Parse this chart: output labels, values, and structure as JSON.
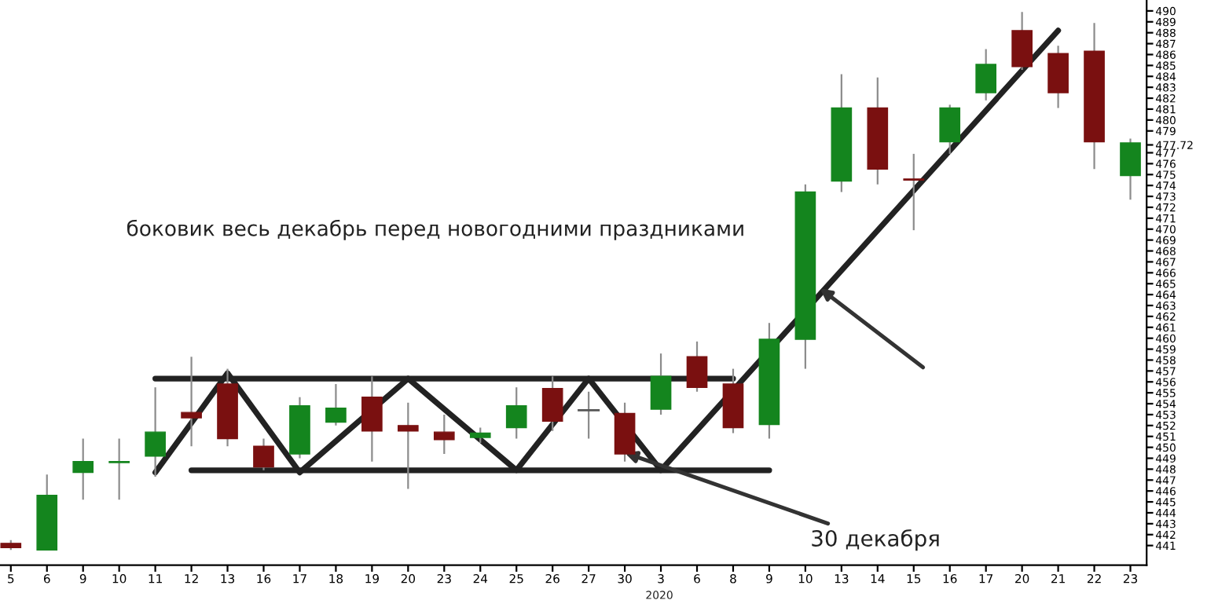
{
  "chart_data": {
    "type": "candlestick",
    "categories": [
      "5",
      "6",
      "9",
      "10",
      "11",
      "12",
      "13",
      "16",
      "17",
      "18",
      "19",
      "20",
      "23",
      "24",
      "25",
      "26",
      "27",
      "30",
      "3",
      "6",
      "8",
      "9",
      "10",
      "13",
      "14",
      "15",
      "16",
      "17",
      "20",
      "21",
      "22",
      "23"
    ],
    "ohlc": [
      [
        441.2,
        441.5,
        440.6,
        440.8
      ],
      [
        440.6,
        447.5,
        440.6,
        445.6
      ],
      [
        447.7,
        450.8,
        445.2,
        448.7
      ],
      [
        448.6,
        450.8,
        445.2,
        448.7
      ],
      [
        449.2,
        455.5,
        447.3,
        451.4
      ],
      [
        453.2,
        458.3,
        450.1,
        452.7
      ],
      [
        455.8,
        457.2,
        450.1,
        450.8
      ],
      [
        450.1,
        450.8,
        447.9,
        448.2
      ],
      [
        449.4,
        454.6,
        449.0,
        453.8
      ],
      [
        452.3,
        455.8,
        452.0,
        453.6
      ],
      [
        454.6,
        456.5,
        448.7,
        451.5
      ],
      [
        452.0,
        454.1,
        446.2,
        451.5
      ],
      [
        451.4,
        453.0,
        449.4,
        450.7
      ],
      [
        450.9,
        451.8,
        450.4,
        451.3
      ],
      [
        451.8,
        455.5,
        450.8,
        453.8
      ],
      [
        455.4,
        456.5,
        451.5,
        452.4
      ],
      [
        453.4,
        455.1,
        450.8,
        453.4
      ],
      [
        453.1,
        454.1,
        448.7,
        449.4
      ],
      [
        453.5,
        458.6,
        453.0,
        456.5
      ],
      [
        458.3,
        459.7,
        455.1,
        455.5
      ],
      [
        455.8,
        457.2,
        451.3,
        451.8
      ],
      [
        452.1,
        461.4,
        450.8,
        459.9
      ],
      [
        459.9,
        474.1,
        457.2,
        473.4
      ],
      [
        474.4,
        484.2,
        473.4,
        481.1
      ],
      [
        481.1,
        483.9,
        474.1,
        475.5
      ],
      [
        474.5,
        476.9,
        469.9,
        474.6
      ],
      [
        478.0,
        481.4,
        476.9,
        481.1
      ],
      [
        482.5,
        486.5,
        481.8,
        485.1
      ],
      [
        488.2,
        489.9,
        484.6,
        484.9
      ],
      [
        486.1,
        486.8,
        481.1,
        482.5
      ],
      [
        486.3,
        488.9,
        475.5,
        478.0
      ],
      [
        474.9,
        478.3,
        472.7,
        477.9
      ]
    ],
    "colors": [
      "#7a1010",
      "#14851e",
      "#14851e",
      "#14851e",
      "#14851e",
      "#7a1010",
      "#7a1010",
      "#7a1010",
      "#14851e",
      "#14851e",
      "#7a1010",
      "#7a1010",
      "#7a1010",
      "#14851e",
      "#14851e",
      "#7a1010",
      "#555555",
      "#7a1010",
      "#14851e",
      "#7a1010",
      "#7a1010",
      "#14851e",
      "#14851e",
      "#14851e",
      "#7a1010",
      "#7a1010",
      "#14851e",
      "#14851e",
      "#7a1010",
      "#7a1010",
      "#7a1010",
      "#14851e"
    ],
    "series": [
      {
        "type": "line",
        "color": "#222222",
        "values": [
          null,
          null,
          null,
          null,
          447.7,
          null,
          456.8,
          null,
          447.7,
          null,
          null,
          456.3,
          null,
          null,
          447.9,
          null,
          456.3,
          null,
          447.9,
          null,
          null,
          null,
          null,
          null,
          null,
          null,
          null,
          null,
          null,
          488.2,
          null,
          null
        ]
      },
      {
        "type": "line",
        "color": "#222222",
        "values": [
          null,
          null,
          null,
          null,
          456.3,
          null,
          null,
          null,
          null,
          null,
          null,
          null,
          null,
          null,
          null,
          null,
          null,
          null,
          null,
          null,
          456.3,
          null,
          null,
          null,
          null,
          null,
          null,
          null,
          null,
          null,
          null,
          null
        ]
      },
      {
        "type": "line",
        "color": "#222222",
        "values": [
          null,
          null,
          null,
          null,
          null,
          447.9,
          null,
          null,
          null,
          null,
          null,
          null,
          null,
          null,
          null,
          null,
          null,
          null,
          null,
          null,
          null,
          447.9,
          null,
          null,
          null,
          null,
          null,
          null,
          null,
          null,
          null,
          null
        ]
      }
    ],
    "ylim": [
      439.2,
      491
    ],
    "yticks": [
      441,
      442,
      443,
      444,
      445,
      446,
      447,
      448,
      449,
      450,
      451,
      452,
      453,
      454,
      455,
      456,
      457,
      458,
      459,
      460,
      461,
      462,
      463,
      464,
      465,
      466,
      467,
      468,
      469,
      470,
      471,
      472,
      473,
      474,
      475,
      476,
      477,
      {
        "value": 477.72,
        "label": "477.72"
      },
      479,
      480,
      481,
      482,
      483,
      484,
      485,
      486,
      487,
      488,
      489,
      490
    ],
    "annotations": [
      "боковик весь декабрь перед новогодними праздниками",
      {
        "text": "30 декабря",
        "x": "30",
        "y": 449.5
      },
      "2020"
    ],
    "grid": false,
    "legend": false,
    "line_style": "solid",
    "marker": "none"
  }
}
